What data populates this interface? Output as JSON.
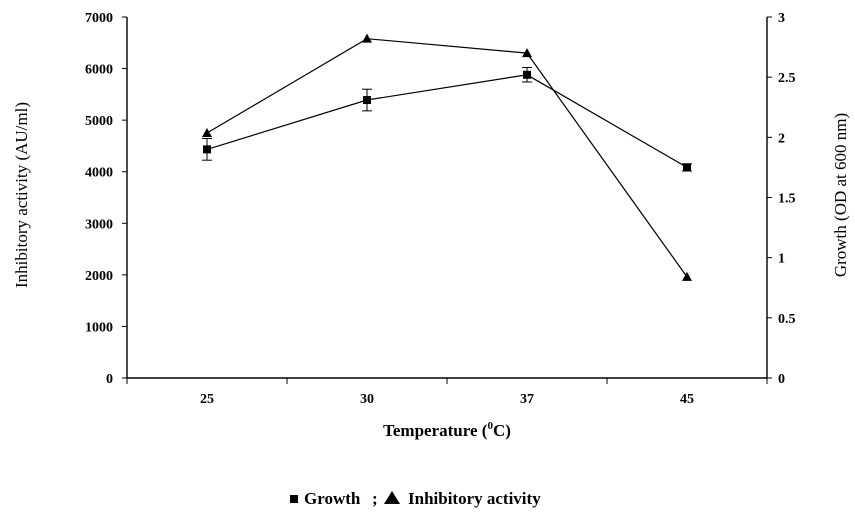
{
  "chart_data": {
    "type": "line",
    "categories": [
      "25",
      "30",
      "37",
      "45"
    ],
    "xlabel_prefix": "Temperature (",
    "xlabel_sup": "0",
    "xlabel_suffix": "C)",
    "ylabel_left": "Inhibitory activity (AU/ml)",
    "ylabel_right": "Growth (OD at 600 nm)",
    "ylim_left": [
      0,
      7000
    ],
    "yticks_left": [
      0,
      1000,
      2000,
      3000,
      4000,
      5000,
      6000,
      7000
    ],
    "ylim_right": [
      0,
      3
    ],
    "yticks_right": [
      "0",
      "0.5",
      "1",
      "1.5",
      "2",
      "2.5",
      "3"
    ],
    "grid": false,
    "legend": {
      "placement": "bottom",
      "text": "Growth;  Inhibitory activity"
    },
    "series": [
      {
        "name": "Growth",
        "axis": "right",
        "marker": "square",
        "values": [
          1.9,
          2.31,
          2.52,
          1.75
        ],
        "errors": [
          0.09,
          0.09,
          0.06,
          0.03
        ]
      },
      {
        "name": "Inhibitory activity",
        "axis": "left",
        "marker": "triangle",
        "values": [
          4750,
          6580,
          6300,
          1960
        ],
        "errors": [
          0,
          0,
          0,
          0
        ]
      }
    ]
  }
}
